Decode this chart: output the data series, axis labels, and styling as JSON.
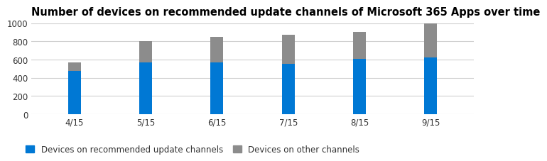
{
  "title": "Number of devices on recommended update channels of Microsoft 365 Apps over time",
  "categories": [
    "4/15",
    "5/15",
    "6/15",
    "7/15",
    "8/15",
    "9/15"
  ],
  "recommended": [
    475,
    565,
    565,
    555,
    605,
    625
  ],
  "other": [
    90,
    235,
    285,
    315,
    295,
    375
  ],
  "color_recommended": "#0078d4",
  "color_other": "#8c8c8c",
  "legend_recommended": "Devices on recommended update channels",
  "legend_other": "Devices on other channels",
  "ylim": [
    0,
    1000
  ],
  "yticks": [
    0,
    200,
    400,
    600,
    800,
    1000
  ],
  "background_color": "#ffffff",
  "bar_width": 0.18,
  "title_fontsize": 10.5,
  "tick_fontsize": 8.5,
  "legend_fontsize": 8.5,
  "grid_color": "#d0d0d0",
  "text_color": "#333333"
}
